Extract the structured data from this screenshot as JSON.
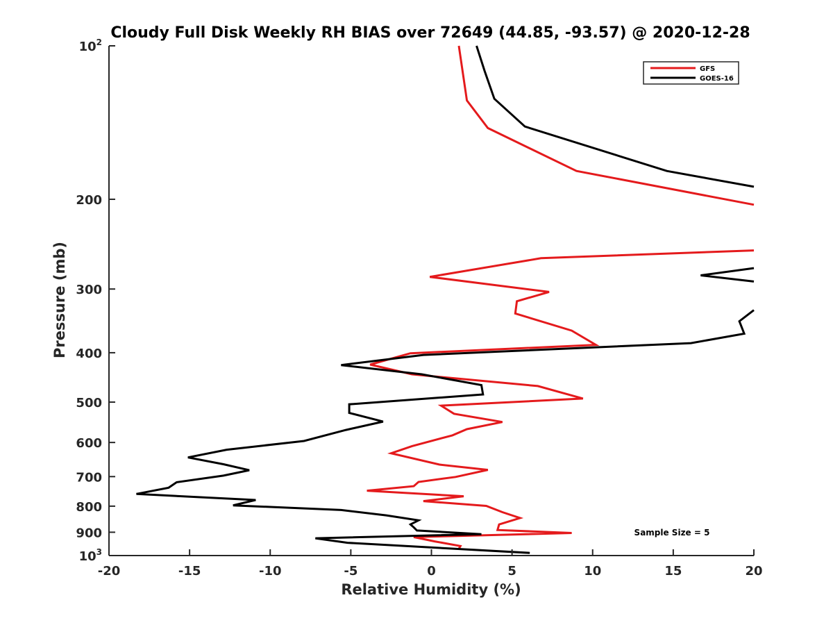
{
  "chart_data": {
    "type": "line",
    "title": "Cloudy Full Disk Weekly RH BIAS over 72649 (44.85, -93.57) @ 2020-12-28",
    "xlabel": "Relative Humidity (%)",
    "ylabel": "Pressure (mb)",
    "xlim": [
      -20,
      20
    ],
    "ylim": [
      100,
      1000
    ],
    "yscale": "log",
    "y_reversed": true,
    "xticks": [
      -20,
      -15,
      -10,
      -5,
      0,
      5,
      10,
      15,
      20
    ],
    "xtick_labels": [
      "-20",
      "-15",
      "-10",
      "-5",
      "0",
      "5",
      "10",
      "15",
      "20"
    ],
    "yticks": [
      100,
      200,
      300,
      400,
      500,
      600,
      700,
      800,
      900,
      1000
    ],
    "ytick_labels": [
      {
        "base": "10",
        "exp": "2"
      },
      {
        "base": "200"
      },
      {
        "base": "300"
      },
      {
        "base": "400"
      },
      {
        "base": "500"
      },
      {
        "base": "600"
      },
      {
        "base": "700"
      },
      {
        "base": "800"
      },
      {
        "base": "900"
      },
      {
        "base": "10",
        "exp": "3"
      }
    ],
    "grid": false,
    "legend_position": "top-right",
    "annotation": "Sample Size = 5",
    "series": [
      {
        "name": "GFS",
        "color": "#e41a1c",
        "points": [
          [
            1.7,
            100
          ],
          [
            2.2,
            128
          ],
          [
            3.5,
            145
          ],
          [
            9.0,
            176
          ],
          [
            20.0,
            205
          ],
          null,
          [
            20.0,
            252
          ],
          [
            6.8,
            261
          ],
          [
            -0.1,
            284
          ],
          [
            7.3,
            304
          ],
          [
            5.3,
            317
          ],
          [
            5.2,
            335
          ],
          [
            8.7,
            362
          ],
          [
            10.2,
            386
          ],
          [
            -1.3,
            401
          ],
          [
            -3.8,
            422
          ],
          [
            -1.2,
            441
          ],
          [
            6.6,
            465
          ],
          [
            9.4,
            492
          ],
          [
            0.6,
            508
          ],
          [
            1.4,
            527
          ],
          [
            4.4,
            547
          ],
          [
            2.2,
            565
          ],
          [
            1.3,
            581
          ],
          [
            -1.2,
            610
          ],
          [
            -2.5,
            630
          ],
          [
            0.5,
            663
          ],
          [
            3.5,
            679
          ],
          [
            1.5,
            701
          ],
          [
            -0.8,
            717
          ],
          [
            -1.1,
            731
          ],
          [
            -4.0,
            746
          ],
          [
            2.0,
            765
          ],
          [
            -0.5,
            782
          ],
          [
            3.4,
            799
          ],
          [
            4.4,
            822
          ],
          [
            5.5,
            844
          ],
          [
            4.2,
            869
          ],
          [
            4.1,
            891
          ],
          [
            8.7,
            903
          ],
          [
            -1.1,
            920
          ],
          [
            0.2,
            938
          ],
          [
            1.8,
            958
          ],
          [
            1.7,
            970
          ]
        ]
      },
      {
        "name": "GOES-16",
        "color": "#000000",
        "points": [
          [
            2.8,
            100
          ],
          [
            3.3,
            112
          ],
          [
            3.9,
            127
          ],
          [
            5.8,
            144
          ],
          [
            14.6,
            176
          ],
          [
            20.0,
            189
          ],
          null,
          [
            20.0,
            273
          ],
          [
            16.7,
            282
          ],
          [
            20.0,
            290
          ],
          null,
          [
            20.0,
            330
          ],
          [
            19.1,
            347
          ],
          [
            19.4,
            367
          ],
          [
            16.1,
            383
          ],
          [
            -0.5,
            404
          ],
          [
            -5.6,
            423
          ],
          [
            -0.6,
            441
          ],
          [
            3.1,
            463
          ],
          [
            3.2,
            483
          ],
          [
            -5.1,
            505
          ],
          [
            -5.1,
            525
          ],
          [
            -3.0,
            546
          ],
          [
            -5.3,
            567
          ],
          [
            -7.9,
            596
          ],
          [
            -12.7,
            620
          ],
          [
            -15.1,
            642
          ],
          [
            -12.9,
            662
          ],
          [
            -11.3,
            680
          ],
          [
            -12.9,
            697
          ],
          [
            -15.8,
            718
          ],
          [
            -16.3,
            736
          ],
          [
            -18.3,
            757
          ],
          [
            -10.9,
            778
          ],
          [
            -12.3,
            797
          ],
          [
            -5.6,
            814
          ],
          [
            -2.8,
            834
          ],
          [
            -0.8,
            853
          ],
          [
            -1.3,
            869
          ],
          [
            -1.1,
            880
          ],
          [
            -0.9,
            893
          ],
          [
            3.1,
            908
          ],
          [
            -7.2,
            925
          ],
          [
            -5.2,
            944
          ],
          [
            6.1,
            988
          ]
        ]
      }
    ]
  }
}
